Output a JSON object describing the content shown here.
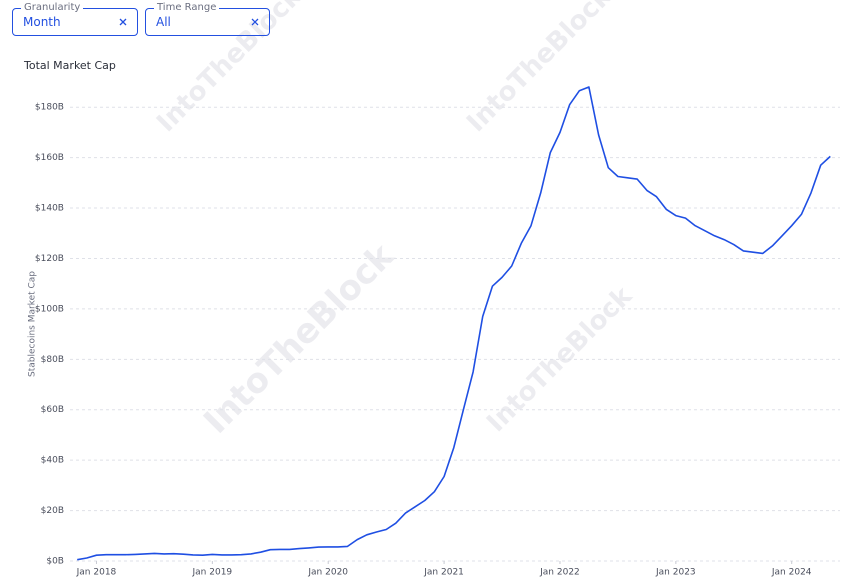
{
  "filters": [
    {
      "label": "Granularity",
      "value": "Month"
    },
    {
      "label": "Time Range",
      "value": "All"
    }
  ],
  "watermark": "IntoTheBlock",
  "chart_data": {
    "type": "line",
    "title": "Total Market Cap",
    "y_label": "Stablecoins Market Cap",
    "color": "#1f4fe3",
    "grid": true,
    "x": [
      "2017-11",
      "2017-12",
      "2018-01",
      "2018-02",
      "2018-03",
      "2018-04",
      "2018-05",
      "2018-06",
      "2018-07",
      "2018-08",
      "2018-09",
      "2018-10",
      "2018-11",
      "2018-12",
      "2019-01",
      "2019-02",
      "2019-03",
      "2019-04",
      "2019-05",
      "2019-06",
      "2019-07",
      "2019-08",
      "2019-09",
      "2019-10",
      "2019-11",
      "2019-12",
      "2020-01",
      "2020-02",
      "2020-03",
      "2020-04",
      "2020-05",
      "2020-06",
      "2020-07",
      "2020-08",
      "2020-09",
      "2020-10",
      "2020-11",
      "2020-12",
      "2021-01",
      "2021-02",
      "2021-03",
      "2021-04",
      "2021-05",
      "2021-06",
      "2021-07",
      "2021-08",
      "2021-09",
      "2021-10",
      "2021-11",
      "2021-12",
      "2022-01",
      "2022-02",
      "2022-03",
      "2022-04",
      "2022-05",
      "2022-06",
      "2022-07",
      "2022-08",
      "2022-09",
      "2022-10",
      "2022-11",
      "2022-12",
      "2023-01",
      "2023-02",
      "2023-03",
      "2023-04",
      "2023-05",
      "2023-06",
      "2023-07",
      "2023-08",
      "2023-09",
      "2023-10",
      "2023-11",
      "2023-12",
      "2024-01",
      "2024-02",
      "2024-03",
      "2024-04",
      "2024-05"
    ],
    "values": [
      0.5,
      1.2,
      2.3,
      2.5,
      2.5,
      2.5,
      2.6,
      2.8,
      3.0,
      2.8,
      2.9,
      2.7,
      2.4,
      2.3,
      2.6,
      2.4,
      2.4,
      2.5,
      2.8,
      3.5,
      4.5,
      4.6,
      4.6,
      4.9,
      5.2,
      5.5,
      5.6,
      5.6,
      5.8,
      8.5,
      10.4,
      11.5,
      12.5,
      15,
      19,
      21.5,
      24,
      27.5,
      33.5,
      45,
      60,
      75,
      97,
      109,
      112.5,
      117,
      126,
      133,
      146,
      162,
      170,
      181,
      186.5,
      188,
      169,
      156,
      152.5,
      152,
      151.5,
      147,
      144.5,
      139.5,
      137,
      136,
      133,
      131,
      129,
      127.5,
      125.5,
      123,
      122.5,
      122,
      125,
      129,
      133,
      137.5,
      146,
      157,
      160.5
    ],
    "xlim": [
      "2017-10",
      "2024-06"
    ],
    "xticks": [
      {
        "value": "2018-01",
        "label": "Jan 2018"
      },
      {
        "value": "2019-01",
        "label": "Jan 2019"
      },
      {
        "value": "2020-01",
        "label": "Jan 2020"
      },
      {
        "value": "2021-01",
        "label": "Jan 2021"
      },
      {
        "value": "2022-01",
        "label": "Jan 2022"
      },
      {
        "value": "2023-01",
        "label": "Jan 2023"
      },
      {
        "value": "2024-01",
        "label": "Jan 2024"
      }
    ],
    "ylim": [
      0,
      190
    ],
    "yticks": [
      {
        "value": 0,
        "label": "$0B"
      },
      {
        "value": 20,
        "label": "$20B"
      },
      {
        "value": 40,
        "label": "$40B"
      },
      {
        "value": 60,
        "label": "$60B"
      },
      {
        "value": 80,
        "label": "$80B"
      },
      {
        "value": 100,
        "label": "$100B"
      },
      {
        "value": 120,
        "label": "$120B"
      },
      {
        "value": 140,
        "label": "$140B"
      },
      {
        "value": 160,
        "label": "$160B"
      },
      {
        "value": 180,
        "label": "$180B"
      }
    ]
  }
}
